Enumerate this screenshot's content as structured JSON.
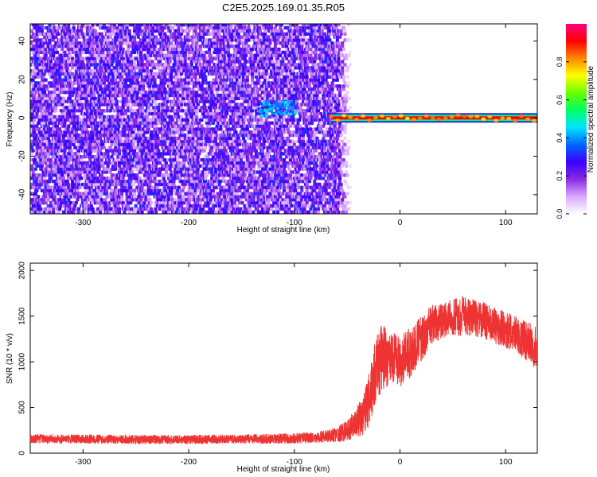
{
  "figure": {
    "title": "C2E5.2025.169.01.35.R05"
  },
  "chart_data": [
    {
      "type": "heatmap",
      "name": "spectrogram",
      "xlabel": "Height of straight line (km)",
      "ylabel": "Frequency (Hz)",
      "xlim": [
        -350,
        130
      ],
      "ylim": [
        -50,
        49
      ],
      "xticks": [
        -300,
        -200,
        -100,
        0,
        100
      ],
      "yticks": [
        -40,
        -20,
        0,
        20,
        40
      ],
      "colorbar": {
        "label": "Normalized spectral amplitude",
        "range": [
          0,
          1
        ],
        "ticks": [
          0.0,
          0.2,
          0.4,
          0.6,
          0.8
        ],
        "colormap": [
          "#ffffff",
          "#d9a8ff",
          "#8a2be2",
          "#3a00ff",
          "#0066ff",
          "#00e5ff",
          "#00ff66",
          "#66ff00",
          "#ffff00",
          "#ff8800",
          "#ff0000",
          "#ff007f"
        ]
      },
      "regions": [
        {
          "x_from": -350,
          "x_to": -60,
          "description": "broadband noise across all frequencies",
          "amplitude": [
            0.05,
            0.3
          ]
        },
        {
          "x_from": -135,
          "x_to": -100,
          "frequency_center": 4,
          "amplitude": [
            0.3,
            0.5
          ]
        },
        {
          "x_from": -65,
          "x_to": 130,
          "frequency_center": 0,
          "amplitude": [
            0.8,
            1.0
          ],
          "description": "narrow line near 0 Hz"
        }
      ],
      "grid": false,
      "legend": "colorbar-right"
    },
    {
      "type": "line",
      "name": "snr",
      "xlabel": "Height of straight line (km)",
      "ylabel": "SNR (10 * v/v)",
      "xlim": [
        -350,
        130
      ],
      "ylim": [
        0,
        2080
      ],
      "xticks": [
        -300,
        -200,
        -100,
        0,
        100
      ],
      "yticks": [
        0,
        500,
        1000,
        1500,
        2000
      ],
      "color": "#ee3333",
      "series": [
        {
          "x": [
            -350,
            -300,
            -250,
            -200,
            -150,
            -100,
            -80,
            -60,
            -50,
            -40,
            -35,
            -30,
            -25,
            -20,
            -15,
            -10,
            -5,
            0,
            10,
            20,
            30,
            40,
            50,
            60,
            70,
            80,
            90,
            100,
            110,
            120,
            130
          ],
          "y": [
            160,
            155,
            150,
            150,
            155,
            160,
            170,
            200,
            250,
            350,
            420,
            550,
            800,
            1000,
            1050,
            1050,
            1080,
            1000,
            1100,
            1250,
            1400,
            1450,
            1480,
            1500,
            1480,
            1450,
            1400,
            1350,
            1300,
            1220,
            1150
          ],
          "y_spread": [
            50,
            50,
            50,
            50,
            50,
            60,
            60,
            80,
            120,
            180,
            220,
            300,
            350,
            380,
            350,
            300,
            300,
            280,
            280,
            250,
            220,
            200,
            200,
            220,
            200,
            200,
            200,
            200,
            200,
            220,
            250
          ]
        }
      ],
      "grid": false
    }
  ]
}
